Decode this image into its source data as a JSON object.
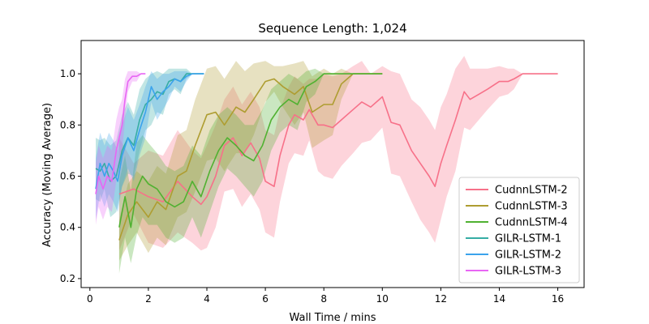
{
  "chart_data": {
    "type": "line",
    "title": "Sequence Length: 1,024",
    "xlabel": "Wall Time / mins",
    "ylabel": "Accuracy (Moving Average)",
    "xlim": [
      -0.3,
      16.9
    ],
    "ylim": [
      0.165,
      1.13
    ],
    "xticks": [
      0,
      2,
      4,
      6,
      8,
      10,
      12,
      14,
      16
    ],
    "yticks": [
      0.2,
      0.4,
      0.6,
      0.8,
      1.0
    ],
    "xtick_labels": [
      "0",
      "2",
      "4",
      "6",
      "8",
      "10",
      "12",
      "14",
      "16"
    ],
    "ytick_labels": [
      "0.2",
      "0.4",
      "0.6",
      "0.8",
      "1.0"
    ],
    "grid": false,
    "legend_position": "lower-right",
    "series": [
      {
        "name": "CudnnLSTM-2",
        "color": "#f77189",
        "x": [
          1.0,
          1.5,
          2.0,
          2.5,
          3.0,
          3.5,
          3.8,
          4.0,
          4.3,
          4.6,
          4.9,
          5.2,
          5.5,
          5.8,
          6.0,
          6.3,
          6.5,
          6.8,
          7.0,
          7.3,
          7.5,
          7.8,
          8.0,
          8.3,
          8.6,
          9.0,
          9.3,
          9.6,
          10.0,
          10.3,
          10.6,
          11.0,
          11.3,
          11.6,
          11.8,
          12.0,
          12.2,
          12.5,
          12.8,
          13.0,
          13.3,
          13.6,
          14.0,
          14.3,
          14.5,
          14.8,
          15.0,
          15.5,
          16.0
        ],
        "values": [
          0.53,
          0.55,
          0.52,
          0.5,
          0.58,
          0.52,
          0.49,
          0.52,
          0.6,
          0.72,
          0.75,
          0.68,
          0.73,
          0.67,
          0.58,
          0.56,
          0.68,
          0.8,
          0.84,
          0.82,
          0.86,
          0.8,
          0.8,
          0.79,
          0.82,
          0.86,
          0.89,
          0.87,
          0.91,
          0.81,
          0.8,
          0.7,
          0.65,
          0.6,
          0.56,
          0.65,
          0.72,
          0.82,
          0.93,
          0.9,
          0.92,
          0.94,
          0.97,
          0.97,
          0.98,
          1.0,
          1.0,
          1.0,
          1.0
        ],
        "band": [
          0.22,
          0.1,
          0.18,
          0.18,
          0.2,
          0.18,
          0.18,
          0.2,
          0.2,
          0.18,
          0.2,
          0.2,
          0.2,
          0.2,
          0.2,
          0.2,
          0.18,
          0.15,
          0.15,
          0.14,
          0.12,
          0.18,
          0.2,
          0.2,
          0.18,
          0.17,
          0.16,
          0.13,
          0.12,
          0.2,
          0.2,
          0.2,
          0.22,
          0.22,
          0.22,
          0.22,
          0.2,
          0.2,
          0.14,
          0.12,
          0.1,
          0.08,
          0.06,
          0.05,
          0.04,
          0.0,
          0.0,
          0.0,
          0.0
        ]
      },
      {
        "name": "CudnnLSTM-3",
        "color": "#ae9d31",
        "x": [
          1.0,
          1.3,
          1.6,
          2.0,
          2.3,
          2.6,
          3.0,
          3.3,
          3.6,
          4.0,
          4.3,
          4.6,
          5.0,
          5.3,
          5.6,
          6.0,
          6.3,
          6.6,
          7.0,
          7.3,
          7.6,
          8.0,
          8.3,
          8.6,
          9.0,
          9.5,
          10.0
        ],
        "values": [
          0.35,
          0.45,
          0.5,
          0.44,
          0.5,
          0.47,
          0.6,
          0.62,
          0.72,
          0.84,
          0.85,
          0.8,
          0.87,
          0.85,
          0.9,
          0.97,
          0.98,
          0.95,
          0.92,
          0.95,
          0.85,
          0.88,
          0.88,
          0.96,
          1.0,
          1.0,
          1.0
        ],
        "band": [
          0.08,
          0.12,
          0.12,
          0.14,
          0.14,
          0.14,
          0.16,
          0.16,
          0.18,
          0.18,
          0.18,
          0.18,
          0.18,
          0.16,
          0.14,
          0.08,
          0.05,
          0.08,
          0.12,
          0.1,
          0.14,
          0.14,
          0.12,
          0.06,
          0.0,
          0.0,
          0.0
        ]
      },
      {
        "name": "CudnnLSTM-4",
        "color": "#50b131",
        "x": [
          1.0,
          1.2,
          1.4,
          1.6,
          1.8,
          2.0,
          2.3,
          2.6,
          2.9,
          3.2,
          3.5,
          3.8,
          4.1,
          4.4,
          4.7,
          5.0,
          5.3,
          5.6,
          5.9,
          6.2,
          6.5,
          6.8,
          7.1,
          7.4,
          7.7,
          8.0,
          8.3,
          8.6,
          9.0,
          9.5,
          10.0
        ],
        "values": [
          0.4,
          0.52,
          0.4,
          0.55,
          0.6,
          0.57,
          0.55,
          0.5,
          0.48,
          0.5,
          0.58,
          0.52,
          0.62,
          0.7,
          0.75,
          0.72,
          0.68,
          0.66,
          0.72,
          0.82,
          0.87,
          0.9,
          0.88,
          0.95,
          0.97,
          1.0,
          1.0,
          1.0,
          1.0,
          1.0,
          1.0
        ],
        "band": [
          0.18,
          0.16,
          0.14,
          0.18,
          0.16,
          0.16,
          0.14,
          0.14,
          0.14,
          0.14,
          0.14,
          0.16,
          0.16,
          0.14,
          0.12,
          0.12,
          0.12,
          0.14,
          0.14,
          0.12,
          0.1,
          0.1,
          0.1,
          0.06,
          0.05,
          0.0,
          0.0,
          0.0,
          0.0,
          0.0,
          0.0
        ]
      },
      {
        "name": "GILR-LSTM-1",
        "color": "#36ada4",
        "x": [
          0.2,
          0.35,
          0.5,
          0.7,
          0.9,
          1.1,
          1.3,
          1.5,
          1.7,
          1.9,
          2.1,
          2.3,
          2.5,
          2.7,
          2.9,
          3.1,
          3.3,
          3.5,
          3.7,
          3.9
        ],
        "values": [
          0.63,
          0.62,
          0.65,
          0.58,
          0.6,
          0.7,
          0.75,
          0.72,
          0.82,
          0.88,
          0.9,
          0.93,
          0.92,
          0.97,
          0.98,
          0.97,
          1.0,
          1.0,
          1.0,
          1.0
        ],
        "band": [
          0.12,
          0.12,
          0.1,
          0.14,
          0.14,
          0.14,
          0.14,
          0.12,
          0.12,
          0.1,
          0.1,
          0.08,
          0.08,
          0.05,
          0.04,
          0.05,
          0.02,
          0.0,
          0.0,
          0.0
        ]
      },
      {
        "name": "GILR-LSTM-2",
        "color": "#3ba3ec",
        "x": [
          0.2,
          0.35,
          0.5,
          0.65,
          0.8,
          0.95,
          1.1,
          1.3,
          1.5,
          1.7,
          1.9,
          2.1,
          2.3,
          2.5,
          2.7,
          2.9,
          3.1,
          3.3,
          3.5,
          3.7,
          3.9
        ],
        "values": [
          0.55,
          0.65,
          0.6,
          0.65,
          0.62,
          0.58,
          0.68,
          0.75,
          0.7,
          0.78,
          0.85,
          0.95,
          0.9,
          0.93,
          0.95,
          0.98,
          0.97,
          0.99,
          1.0,
          1.0,
          1.0
        ],
        "band": [
          0.12,
          0.12,
          0.12,
          0.12,
          0.12,
          0.12,
          0.12,
          0.12,
          0.12,
          0.1,
          0.1,
          0.06,
          0.08,
          0.07,
          0.05,
          0.03,
          0.04,
          0.02,
          0.0,
          0.0,
          0.0
        ]
      },
      {
        "name": "GILR-LSTM-3",
        "color": "#e866f4",
        "x": [
          0.2,
          0.3,
          0.45,
          0.6,
          0.75,
          0.9,
          1.0,
          1.1,
          1.2,
          1.3,
          1.45,
          1.6,
          1.75,
          1.9
        ],
        "values": [
          0.53,
          0.6,
          0.55,
          0.6,
          0.58,
          0.7,
          0.75,
          0.8,
          0.9,
          0.97,
          0.99,
          0.99,
          1.0,
          1.0
        ],
        "band": [
          0.12,
          0.12,
          0.12,
          0.12,
          0.12,
          0.12,
          0.12,
          0.1,
          0.08,
          0.04,
          0.02,
          0.02,
          0.0,
          0.0
        ]
      }
    ]
  }
}
